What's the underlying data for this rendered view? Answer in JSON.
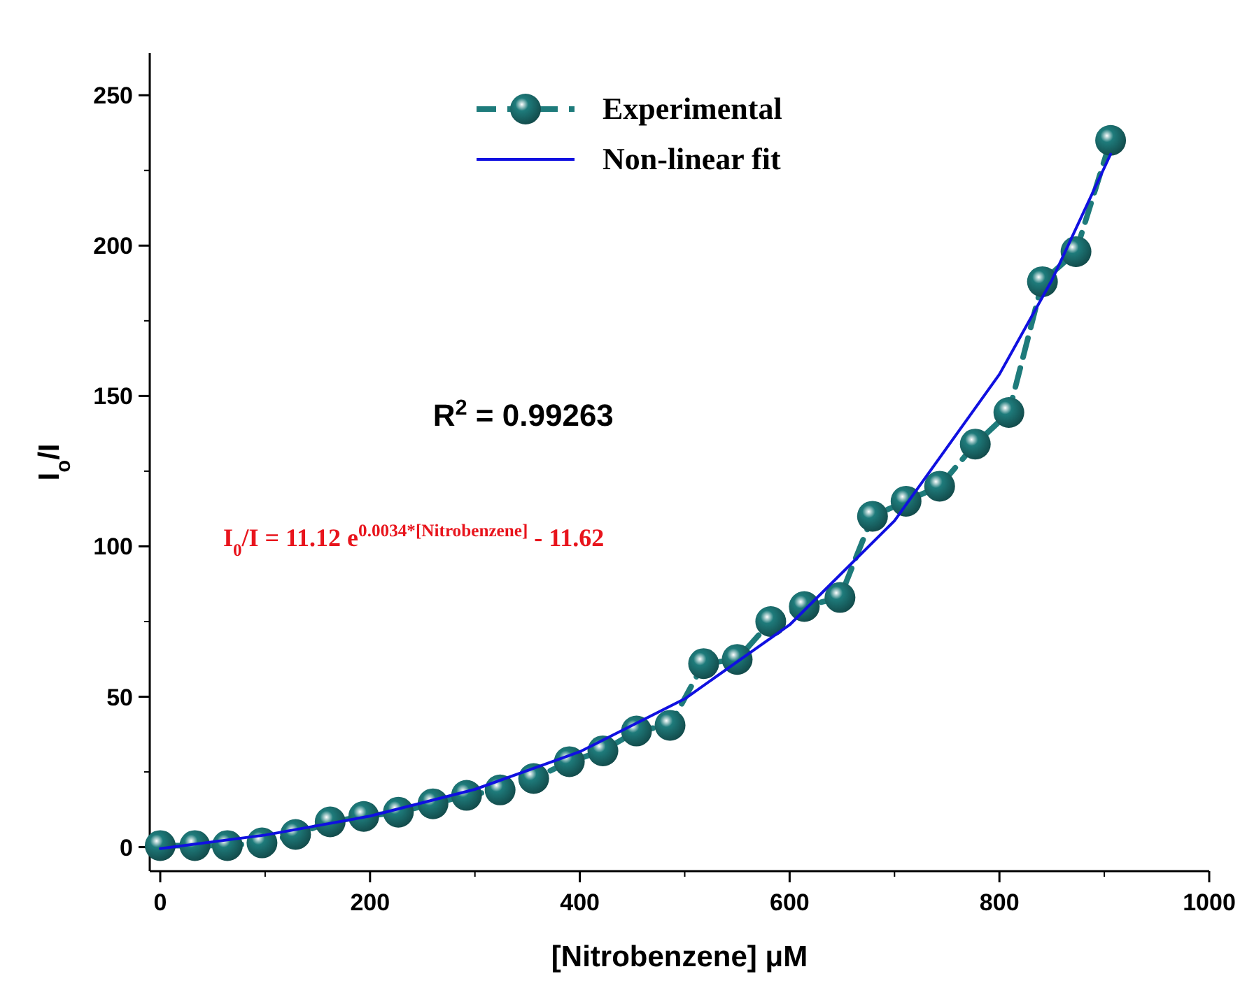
{
  "chart_data": {
    "type": "line",
    "xlabel": "[Nitrobenzene] μM",
    "ylabel": "I$_{o}$/I",
    "xlim": [
      -10,
      1000
    ],
    "ylim": [
      -8,
      264
    ],
    "xticks": [
      0,
      200,
      400,
      600,
      800,
      1000
    ],
    "yticks": [
      0,
      50,
      100,
      150,
      200,
      250
    ],
    "legend": "top",
    "grid": false,
    "annotations": [
      "R$^{2}$ = 0.99263",
      "I$_{0}$/I = 11.12 e$^{0.0034*[Nitrobenzene]}$ - 11.62"
    ],
    "series": [
      {
        "name": "Experimental",
        "color": "#1e7b7b",
        "marker": "circle",
        "line_style": "dashed",
        "x": [
          0,
          33,
          64,
          97,
          129,
          162,
          194,
          227,
          260,
          292,
          324,
          356,
          390,
          422,
          454,
          486,
          518,
          550,
          582,
          614,
          648,
          679,
          711,
          743,
          777,
          809,
          841,
          873,
          906
        ],
        "values": [
          0.5,
          0.5,
          0.5,
          1.4,
          4.2,
          8.4,
          10.2,
          11.6,
          14.4,
          17.2,
          19,
          22.8,
          28.4,
          32,
          38.6,
          40.5,
          61,
          62.4,
          75,
          80,
          83,
          110,
          115,
          120,
          134,
          144.5,
          188,
          198,
          235
        ]
      },
      {
        "name": "Non-linear fit",
        "color": "#1010e0",
        "marker": "none",
        "line_style": "solid",
        "x": [
          0,
          100,
          200,
          300,
          400,
          500,
          600,
          700,
          800,
          850,
          906
        ],
        "values": [
          -0.5,
          4,
          10.3,
          19.2,
          31.7,
          49.3,
          73.9,
          108.5,
          157.2,
          188.5,
          230.4
        ]
      }
    ]
  }
}
